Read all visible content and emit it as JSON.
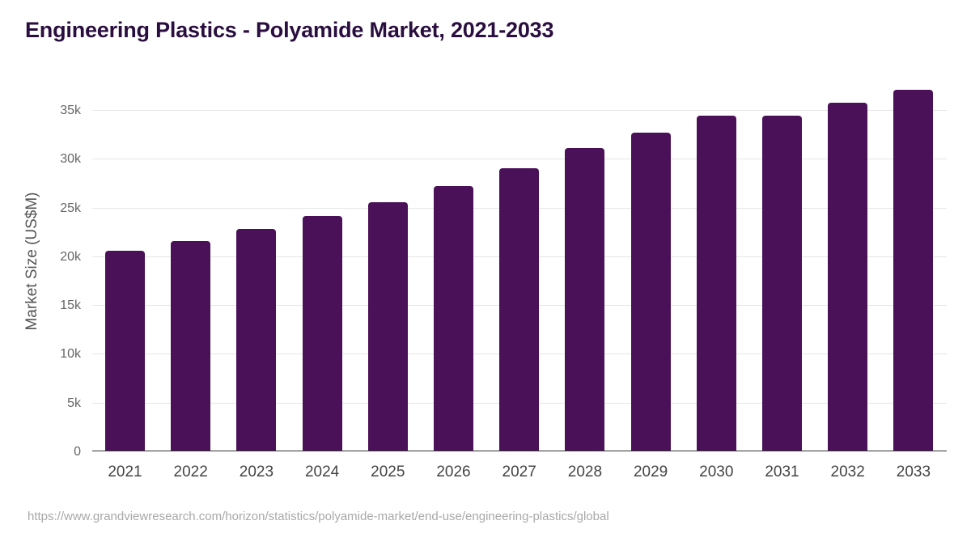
{
  "title": "Engineering Plastics - Polyamide Market, 2021-2033",
  "source": "https://www.grandviewresearch.com/horizon/statistics/polyamide-market/end-use/engineering-plastics/global",
  "colors": {
    "bar": "#4a1158",
    "title": "#2a0e3f",
    "grid": "#e6e6e6"
  },
  "chart_data": {
    "type": "bar",
    "title": "Engineering Plastics - Polyamide Market, 2021-2033",
    "xlabel": "",
    "ylabel": "Market Size (US$M)",
    "categories": [
      "2021",
      "2022",
      "2023",
      "2024",
      "2025",
      "2026",
      "2027",
      "2028",
      "2029",
      "2030",
      "2031",
      "2032",
      "2033"
    ],
    "values": [
      20600,
      21600,
      22800,
      24100,
      25500,
      27200,
      29000,
      31100,
      32700,
      34400,
      34400,
      35700,
      37100
    ],
    "ylim": [
      0,
      39000
    ],
    "yticks": [
      0,
      5000,
      10000,
      15000,
      20000,
      25000,
      30000,
      35000
    ],
    "ytick_labels": [
      "0",
      "5k",
      "10k",
      "15k",
      "20k",
      "25k",
      "30k",
      "35k"
    ],
    "grid": true,
    "legend": null
  }
}
